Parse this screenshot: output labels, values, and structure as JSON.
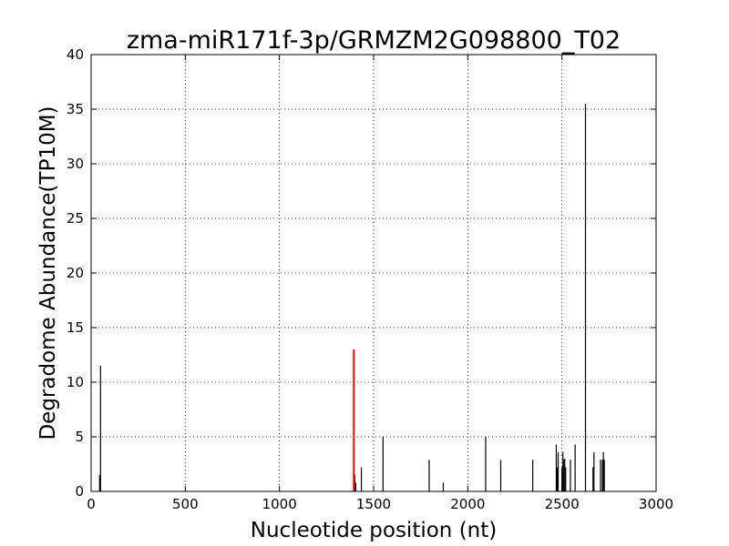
{
  "chart_data": {
    "type": "bar",
    "title": "zma-miR171f-3p/GRMZM2G098800_T02",
    "xlabel": "Nucleotide position (nt)",
    "ylabel": "Degradome Abundance(TP10M)",
    "xlim": [
      0,
      3000
    ],
    "ylim": [
      0,
      40
    ],
    "xticks": [
      0,
      500,
      1000,
      1500,
      2000,
      2500,
      3000
    ],
    "yticks": [
      0,
      5,
      10,
      15,
      20,
      25,
      30,
      35,
      40
    ],
    "grid": true,
    "colors": {
      "series": "#000000",
      "highlight": "#ff0000"
    },
    "series": [
      {
        "values": [
          {
            "x": 45,
            "y": 1.5
          },
          {
            "x": 50,
            "y": 11.5
          },
          {
            "x": 1400,
            "y": 1.5
          },
          {
            "x": 1405,
            "y": 0.8
          },
          {
            "x": 1435,
            "y": 2.2
          },
          {
            "x": 1550,
            "y": 5.0
          },
          {
            "x": 1795,
            "y": 2.9
          },
          {
            "x": 1870,
            "y": 0.8
          },
          {
            "x": 2095,
            "y": 5.0
          },
          {
            "x": 2175,
            "y": 2.9
          },
          {
            "x": 2345,
            "y": 2.9
          },
          {
            "x": 2470,
            "y": 4.3
          },
          {
            "x": 2475,
            "y": 2.2
          },
          {
            "x": 2480,
            "y": 3.6
          },
          {
            "x": 2500,
            "y": 2.2
          },
          {
            "x": 2505,
            "y": 3.6
          },
          {
            "x": 2510,
            "y": 2.9
          },
          {
            "x": 2515,
            "y": 3.0
          },
          {
            "x": 2520,
            "y": 2.2
          },
          {
            "x": 2545,
            "y": 2.9
          },
          {
            "x": 2570,
            "y": 4.3
          },
          {
            "x": 2625,
            "y": 35.5
          },
          {
            "x": 2665,
            "y": 2.2
          },
          {
            "x": 2670,
            "y": 3.6
          },
          {
            "x": 2705,
            "y": 2.9
          },
          {
            "x": 2715,
            "y": 2.9
          },
          {
            "x": 2720,
            "y": 3.6
          },
          {
            "x": 2725,
            "y": 2.9
          }
        ]
      },
      {
        "highlight": true,
        "values": [
          {
            "x": 1395,
            "y": 13.0
          }
        ]
      }
    ]
  }
}
